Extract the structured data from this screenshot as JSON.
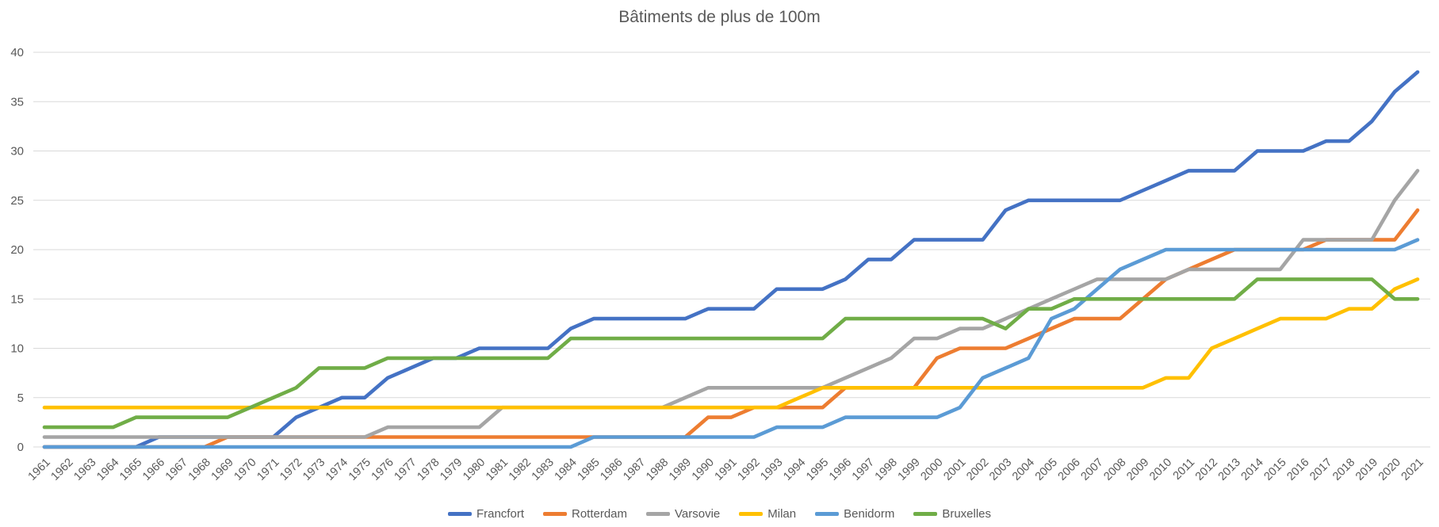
{
  "title": "Bâtiments de plus de 100m",
  "chart_data": {
    "type": "line",
    "title": "Bâtiments de plus de 100m",
    "xlabel": "",
    "ylabel": "",
    "ylim": [
      0,
      40
    ],
    "yticks": [
      0,
      5,
      10,
      15,
      20,
      25,
      30,
      35,
      40
    ],
    "grid": "horizontal",
    "grid_color": "#D9D9D9",
    "axis_text_color": "#595959",
    "legend_position": "bottom",
    "years": [
      1961,
      1962,
      1963,
      1964,
      1965,
      1966,
      1967,
      1968,
      1969,
      1970,
      1971,
      1972,
      1973,
      1974,
      1975,
      1976,
      1977,
      1978,
      1979,
      1980,
      1981,
      1982,
      1983,
      1984,
      1985,
      1986,
      1987,
      1988,
      1989,
      1990,
      1991,
      1992,
      1993,
      1994,
      1995,
      1996,
      1997,
      1998,
      1999,
      2000,
      2001,
      2002,
      2003,
      2004,
      2005,
      2006,
      2007,
      2008,
      2009,
      2010,
      2011,
      2012,
      2013,
      2014,
      2015,
      2016,
      2017,
      2018,
      2019,
      2020,
      2021
    ],
    "series": [
      {
        "name": "Francfort",
        "color": "#4472C4",
        "values": [
          0,
          0,
          0,
          0,
          0,
          1,
          1,
          1,
          1,
          1,
          1,
          3,
          4,
          5,
          5,
          7,
          8,
          9,
          9,
          10,
          10,
          10,
          10,
          12,
          13,
          13,
          13,
          13,
          13,
          14,
          14,
          14,
          16,
          16,
          16,
          17,
          19,
          19,
          21,
          21,
          21,
          21,
          24,
          25,
          25,
          25,
          25,
          25,
          26,
          27,
          28,
          28,
          28,
          30,
          30,
          30,
          31,
          31,
          33,
          36,
          38
        ]
      },
      {
        "name": "Rotterdam",
        "color": "#ED7D31",
        "values": [
          0,
          0,
          0,
          0,
          0,
          0,
          0,
          0,
          1,
          1,
          1,
          1,
          1,
          1,
          1,
          1,
          1,
          1,
          1,
          1,
          1,
          1,
          1,
          1,
          1,
          1,
          1,
          1,
          1,
          3,
          3,
          4,
          4,
          4,
          4,
          6,
          6,
          6,
          6,
          9,
          10,
          10,
          10,
          11,
          12,
          13,
          13,
          13,
          15,
          17,
          18,
          19,
          20,
          20,
          20,
          20,
          21,
          21,
          21,
          21,
          24
        ]
      },
      {
        "name": "Varsovie",
        "color": "#A5A5A5",
        "values": [
          1,
          1,
          1,
          1,
          1,
          1,
          1,
          1,
          1,
          1,
          1,
          1,
          1,
          1,
          1,
          2,
          2,
          2,
          2,
          2,
          4,
          4,
          4,
          4,
          4,
          4,
          4,
          4,
          5,
          6,
          6,
          6,
          6,
          6,
          6,
          7,
          8,
          9,
          11,
          11,
          12,
          12,
          13,
          14,
          15,
          16,
          17,
          17,
          17,
          17,
          18,
          18,
          18,
          18,
          18,
          21,
          21,
          21,
          21,
          25,
          28
        ]
      },
      {
        "name": "Milan",
        "color": "#FFC000",
        "values": [
          4,
          4,
          4,
          4,
          4,
          4,
          4,
          4,
          4,
          4,
          4,
          4,
          4,
          4,
          4,
          4,
          4,
          4,
          4,
          4,
          4,
          4,
          4,
          4,
          4,
          4,
          4,
          4,
          4,
          4,
          4,
          4,
          4,
          5,
          6,
          6,
          6,
          6,
          6,
          6,
          6,
          6,
          6,
          6,
          6,
          6,
          6,
          6,
          6,
          7,
          7,
          10,
          11,
          12,
          13,
          13,
          13,
          14,
          14,
          16,
          17
        ]
      },
      {
        "name": "Benidorm",
        "color": "#5B9BD5",
        "values": [
          0,
          0,
          0,
          0,
          0,
          0,
          0,
          0,
          0,
          0,
          0,
          0,
          0,
          0,
          0,
          0,
          0,
          0,
          0,
          0,
          0,
          0,
          0,
          0,
          1,
          1,
          1,
          1,
          1,
          1,
          1,
          1,
          2,
          2,
          2,
          3,
          3,
          3,
          3,
          3,
          4,
          7,
          8,
          9,
          13,
          14,
          16,
          18,
          19,
          20,
          20,
          20,
          20,
          20,
          20,
          20,
          20,
          20,
          20,
          20,
          21
        ]
      },
      {
        "name": "Bruxelles",
        "color": "#70AD47",
        "values": [
          2,
          2,
          2,
          2,
          3,
          3,
          3,
          3,
          3,
          4,
          5,
          6,
          8,
          8,
          8,
          9,
          9,
          9,
          9,
          9,
          9,
          9,
          9,
          11,
          11,
          11,
          11,
          11,
          11,
          11,
          11,
          11,
          11,
          11,
          11,
          13,
          13,
          13,
          13,
          13,
          13,
          13,
          12,
          14,
          14,
          15,
          15,
          15,
          15,
          15,
          15,
          15,
          15,
          17,
          17,
          17,
          17,
          17,
          17,
          15,
          15
        ]
      }
    ]
  }
}
